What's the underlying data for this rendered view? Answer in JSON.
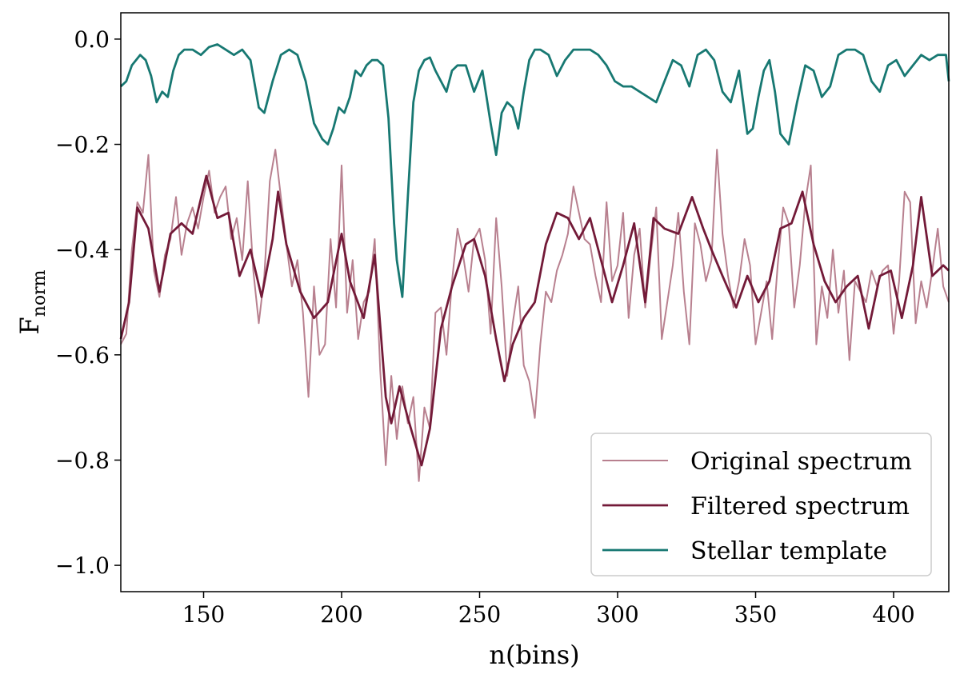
{
  "chart_data": {
    "type": "line",
    "title": "",
    "xlabel": "n(bins)",
    "ylabel_main": "F",
    "ylabel_sub": "norm",
    "xlim": [
      120,
      420
    ],
    "ylim": [
      -1.05,
      0.05
    ],
    "x_ticks": [
      150,
      200,
      250,
      300,
      350,
      400
    ],
    "x_tick_labels": [
      "150",
      "200",
      "250",
      "300",
      "350",
      "400"
    ],
    "y_ticks": [
      0.0,
      -0.2,
      -0.4,
      -0.6,
      -0.8,
      -1.0
    ],
    "y_tick_labels": [
      "0.0",
      "−0.2",
      "−0.4",
      "−0.6",
      "−0.8",
      "−1.0"
    ],
    "grid": false,
    "legend_position": "lower-right",
    "series": [
      {
        "name": "Original spectrum",
        "color": "#b8808f",
        "x": [
          120,
          122,
          124,
          126,
          128,
          130,
          132,
          134,
          136,
          138,
          140,
          142,
          144,
          146,
          148,
          150,
          152,
          154,
          156,
          158,
          160,
          162,
          164,
          166,
          168,
          170,
          172,
          174,
          176,
          178,
          180,
          182,
          184,
          186,
          188,
          190,
          192,
          194,
          196,
          198,
          200,
          202,
          204,
          206,
          208,
          210,
          212,
          214,
          216,
          218,
          220,
          222,
          224,
          226,
          228,
          230,
          232,
          234,
          236,
          238,
          240,
          242,
          244,
          246,
          248,
          250,
          252,
          254,
          256,
          258,
          260,
          262,
          264,
          266,
          268,
          270,
          272,
          274,
          276,
          278,
          280,
          282,
          284,
          286,
          288,
          290,
          292,
          294,
          296,
          298,
          300,
          302,
          304,
          306,
          308,
          310,
          312,
          314,
          316,
          318,
          320,
          322,
          324,
          326,
          328,
          330,
          332,
          334,
          336,
          338,
          340,
          342,
          344,
          346,
          348,
          350,
          352,
          354,
          356,
          358,
          360,
          362,
          364,
          366,
          368,
          370,
          372,
          374,
          376,
          378,
          380,
          382,
          384,
          386,
          388,
          390,
          392,
          394,
          396,
          398,
          400,
          402,
          404,
          406,
          408,
          410,
          412,
          414,
          416,
          418,
          420
        ],
        "values": [
          -0.58,
          -0.56,
          -0.4,
          -0.31,
          -0.33,
          -0.22,
          -0.44,
          -0.49,
          -0.41,
          -0.38,
          -0.3,
          -0.41,
          -0.35,
          -0.32,
          -0.36,
          -0.3,
          -0.25,
          -0.33,
          -0.3,
          -0.28,
          -0.38,
          -0.34,
          -0.42,
          -0.27,
          -0.44,
          -0.54,
          -0.45,
          -0.27,
          -0.21,
          -0.3,
          -0.39,
          -0.47,
          -0.42,
          -0.52,
          -0.68,
          -0.47,
          -0.6,
          -0.58,
          -0.38,
          -0.51,
          -0.24,
          -0.52,
          -0.42,
          -0.57,
          -0.5,
          -0.48,
          -0.38,
          -0.63,
          -0.81,
          -0.64,
          -0.76,
          -0.66,
          -0.73,
          -0.68,
          -0.84,
          -0.7,
          -0.74,
          -0.52,
          -0.51,
          -0.6,
          -0.46,
          -0.36,
          -0.41,
          -0.48,
          -0.38,
          -0.36,
          -0.42,
          -0.56,
          -0.34,
          -0.47,
          -0.64,
          -0.54,
          -0.47,
          -0.62,
          -0.65,
          -0.72,
          -0.58,
          -0.48,
          -0.5,
          -0.44,
          -0.41,
          -0.37,
          -0.28,
          -0.33,
          -0.38,
          -0.39,
          -0.45,
          -0.5,
          -0.31,
          -0.46,
          -0.43,
          -0.33,
          -0.53,
          -0.41,
          -0.36,
          -0.51,
          -0.41,
          -0.32,
          -0.57,
          -0.5,
          -0.43,
          -0.33,
          -0.48,
          -0.58,
          -0.35,
          -0.39,
          -0.46,
          -0.42,
          -0.21,
          -0.37,
          -0.45,
          -0.51,
          -0.46,
          -0.38,
          -0.43,
          -0.58,
          -0.52,
          -0.46,
          -0.57,
          -0.43,
          -0.32,
          -0.35,
          -0.51,
          -0.43,
          -0.31,
          -0.24,
          -0.58,
          -0.47,
          -0.53,
          -0.4,
          -0.52,
          -0.44,
          -0.61,
          -0.46,
          -0.48,
          -0.5,
          -0.44,
          -0.47,
          -0.44,
          -0.43,
          -0.56,
          -0.46,
          -0.29,
          -0.31,
          -0.54,
          -0.46,
          -0.51,
          -0.44,
          -0.36,
          -0.47,
          -0.5
        ]
      },
      {
        "name": "Filtered spectrum",
        "color": "#731a38",
        "x": [
          120,
          123,
          126,
          130,
          134,
          138,
          142,
          146,
          151,
          155,
          159,
          163,
          167,
          171,
          175,
          177,
          180,
          185,
          190,
          195,
          200,
          203,
          208,
          212,
          216,
          218,
          221,
          224,
          229,
          232,
          236,
          240,
          245,
          248,
          252,
          256,
          259,
          262,
          266,
          270,
          274,
          278,
          282,
          286,
          290,
          294,
          298,
          302,
          306,
          310,
          313,
          317,
          322,
          327,
          331,
          334,
          338,
          343,
          347,
          351,
          355,
          359,
          363,
          367,
          371,
          375,
          379,
          383,
          387,
          391,
          395,
          399,
          403,
          407,
          410,
          414,
          418,
          420
        ],
        "values": [
          -0.57,
          -0.5,
          -0.32,
          -0.36,
          -0.48,
          -0.37,
          -0.35,
          -0.37,
          -0.26,
          -0.34,
          -0.33,
          -0.45,
          -0.4,
          -0.49,
          -0.38,
          -0.29,
          -0.39,
          -0.48,
          -0.53,
          -0.5,
          -0.37,
          -0.46,
          -0.53,
          -0.41,
          -0.68,
          -0.73,
          -0.66,
          -0.72,
          -0.81,
          -0.74,
          -0.55,
          -0.47,
          -0.39,
          -0.38,
          -0.45,
          -0.57,
          -0.65,
          -0.58,
          -0.53,
          -0.5,
          -0.39,
          -0.33,
          -0.34,
          -0.38,
          -0.34,
          -0.42,
          -0.5,
          -0.43,
          -0.35,
          -0.5,
          -0.34,
          -0.36,
          -0.37,
          -0.3,
          -0.36,
          -0.4,
          -0.45,
          -0.51,
          -0.45,
          -0.5,
          -0.46,
          -0.36,
          -0.35,
          -0.29,
          -0.39,
          -0.46,
          -0.5,
          -0.47,
          -0.45,
          -0.55,
          -0.45,
          -0.44,
          -0.53,
          -0.43,
          -0.3,
          -0.45,
          -0.43,
          -0.44
        ]
      },
      {
        "name": "Stellar template",
        "color": "#177872",
        "x": [
          120,
          122,
          124,
          127,
          129,
          131,
          133,
          135,
          137,
          139,
          141,
          143,
          146,
          149,
          152,
          155,
          158,
          161,
          164,
          167,
          170,
          172,
          175,
          178,
          181,
          184,
          187,
          190,
          193,
          195,
          197,
          199,
          201,
          203,
          205,
          207,
          209,
          211,
          213,
          215,
          217,
          219,
          220,
          222,
          224,
          226,
          228,
          230,
          232,
          234,
          236,
          238,
          240,
          242,
          245,
          248,
          251,
          254,
          256,
          258,
          260,
          262,
          264,
          266,
          268,
          270,
          272,
          275,
          278,
          281,
          284,
          287,
          290,
          293,
          296,
          299,
          302,
          305,
          308,
          311,
          314,
          317,
          320,
          323,
          326,
          329,
          332,
          335,
          338,
          341,
          344,
          347,
          349,
          351,
          353,
          355,
          357,
          359,
          362,
          365,
          368,
          371,
          374,
          377,
          380,
          383,
          386,
          389,
          392,
          395,
          398,
          401,
          404,
          407,
          410,
          413,
          416,
          419,
          420
        ],
        "values": [
          -0.09,
          -0.08,
          -0.05,
          -0.03,
          -0.04,
          -0.07,
          -0.12,
          -0.1,
          -0.11,
          -0.06,
          -0.03,
          -0.02,
          -0.02,
          -0.03,
          -0.015,
          -0.01,
          -0.02,
          -0.03,
          -0.02,
          -0.04,
          -0.13,
          -0.14,
          -0.08,
          -0.03,
          -0.02,
          -0.03,
          -0.08,
          -0.16,
          -0.19,
          -0.2,
          -0.17,
          -0.13,
          -0.14,
          -0.11,
          -0.06,
          -0.07,
          -0.05,
          -0.04,
          -0.04,
          -0.05,
          -0.15,
          -0.35,
          -0.42,
          -0.49,
          -0.3,
          -0.12,
          -0.06,
          -0.04,
          -0.035,
          -0.06,
          -0.08,
          -0.1,
          -0.06,
          -0.05,
          -0.05,
          -0.1,
          -0.06,
          -0.16,
          -0.22,
          -0.14,
          -0.12,
          -0.13,
          -0.17,
          -0.1,
          -0.04,
          -0.02,
          -0.02,
          -0.03,
          -0.07,
          -0.04,
          -0.02,
          -0.02,
          -0.02,
          -0.03,
          -0.05,
          -0.08,
          -0.09,
          -0.09,
          -0.1,
          -0.11,
          -0.12,
          -0.08,
          -0.04,
          -0.05,
          -0.09,
          -0.03,
          -0.02,
          -0.04,
          -0.1,
          -0.12,
          -0.06,
          -0.18,
          -0.17,
          -0.11,
          -0.06,
          -0.04,
          -0.1,
          -0.18,
          -0.2,
          -0.12,
          -0.05,
          -0.06,
          -0.11,
          -0.09,
          -0.03,
          -0.02,
          -0.02,
          -0.03,
          -0.08,
          -0.1,
          -0.05,
          -0.04,
          -0.07,
          -0.05,
          -0.03,
          -0.04,
          -0.03,
          -0.03,
          -0.08
        ]
      }
    ]
  }
}
